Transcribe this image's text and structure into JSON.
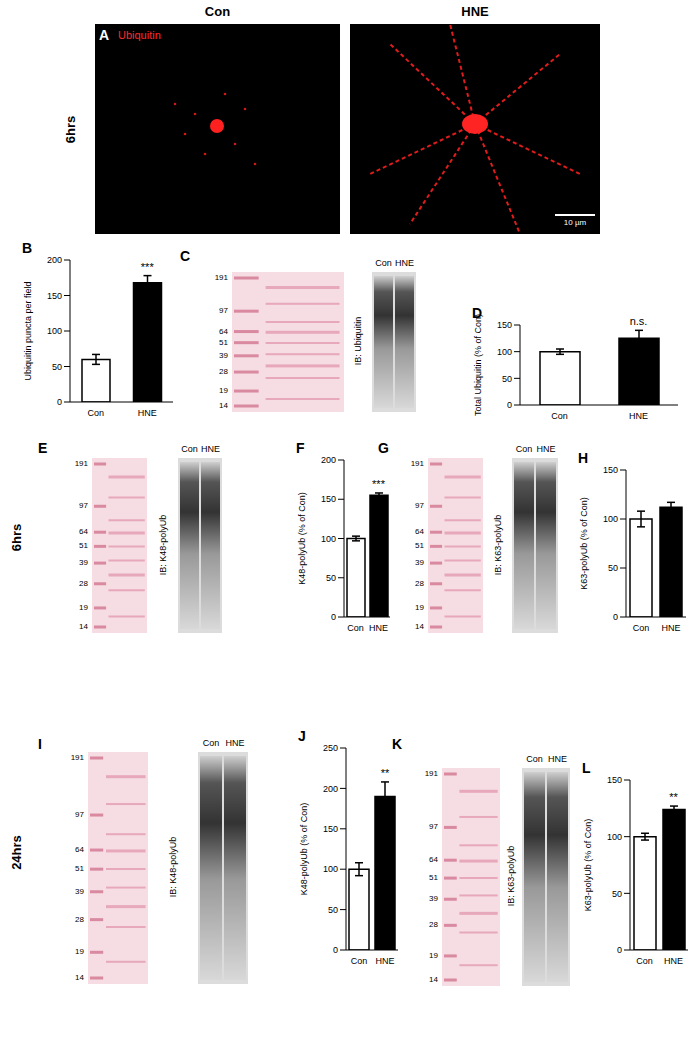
{
  "chart_data": [
    {
      "type": "bar",
      "panel": "B",
      "categories": [
        "Con",
        "HNE"
      ],
      "values": [
        60,
        168
      ],
      "errors": [
        7,
        10
      ],
      "colors": [
        "#ffffff",
        "#000000"
      ],
      "ylim": [
        0,
        200
      ],
      "yticks": [
        0,
        50,
        100,
        150,
        200
      ],
      "ylabel": "Ubiquitin puncta per field",
      "annotation": {
        "text": "***",
        "category": "HNE"
      }
    },
    {
      "type": "bar",
      "panel": "D",
      "categories": [
        "Con",
        "HNE"
      ],
      "values": [
        100,
        125
      ],
      "errors": [
        5,
        15
      ],
      "colors": [
        "#ffffff",
        "#000000"
      ],
      "ylim": [
        0,
        150
      ],
      "yticks": [
        0,
        50,
        100,
        150
      ],
      "ylabel": "Total Ubiquitin (% of Con)",
      "annotation": {
        "text": "n.s.",
        "category": "HNE"
      }
    },
    {
      "type": "bar",
      "panel": "F",
      "categories": [
        "Con",
        "HNE"
      ],
      "values": [
        100,
        155
      ],
      "errors": [
        3,
        3
      ],
      "colors": [
        "#ffffff",
        "#000000"
      ],
      "ylim": [
        0,
        200
      ],
      "yticks": [
        0,
        50,
        100,
        150,
        200
      ],
      "ylabel": "K48-polyUb (% of Con)",
      "annotation": {
        "text": "***",
        "category": "HNE"
      }
    },
    {
      "type": "bar",
      "panel": "H",
      "categories": [
        "Con",
        "HNE"
      ],
      "values": [
        100,
        112
      ],
      "errors": [
        8,
        5
      ],
      "colors": [
        "#ffffff",
        "#000000"
      ],
      "ylim": [
        0,
        150
      ],
      "yticks": [
        0,
        50,
        100,
        150
      ],
      "ylabel": "K63-polyUb (% of Con)"
    },
    {
      "type": "bar",
      "panel": "J",
      "categories": [
        "Con",
        "HNE"
      ],
      "values": [
        100,
        190
      ],
      "errors": [
        8,
        18
      ],
      "colors": [
        "#ffffff",
        "#000000"
      ],
      "ylim": [
        0,
        250
      ],
      "yticks": [
        0,
        50,
        100,
        150,
        200,
        250
      ],
      "ylabel": "K48-polyUb (% of Con)",
      "annotation": {
        "text": "**",
        "category": "HNE"
      }
    },
    {
      "type": "bar",
      "panel": "L",
      "categories": [
        "Con",
        "HNE"
      ],
      "values": [
        100,
        124
      ],
      "errors": [
        3,
        3
      ],
      "colors": [
        "#ffffff",
        "#000000"
      ],
      "ylim": [
        0,
        150
      ],
      "yticks": [
        0,
        50,
        100,
        150
      ],
      "ylabel": "K63-polyUb (% of Con)",
      "annotation": {
        "text": "**",
        "category": "HNE"
      }
    }
  ],
  "images": {
    "panel": "A",
    "row_label": "6hrs",
    "stain": "Ubiquitin",
    "conditions": [
      "Con",
      "HNE"
    ],
    "scale_bar": "10 µm"
  },
  "blots": [
    {
      "panel": "C",
      "ladder": [
        191,
        97,
        64,
        51,
        39,
        28,
        19,
        14
      ],
      "label": "IB: Ubiquitin",
      "lanes": [
        "Con",
        "HNE"
      ]
    },
    {
      "panel": "E",
      "ladder": [
        191,
        97,
        64,
        51,
        39,
        28,
        19,
        14
      ],
      "label": "IB: K48-polyUb",
      "lanes": [
        "Con",
        "HNE"
      ]
    },
    {
      "panel": "G",
      "ladder": [
        191,
        97,
        64,
        51,
        39,
        28,
        19,
        14
      ],
      "label": "IB: K63-polyUb",
      "lanes": [
        "Con",
        "HNE"
      ]
    },
    {
      "panel": "I",
      "ladder": [
        191,
        97,
        64,
        51,
        39,
        28,
        19,
        14
      ],
      "label": "IB: K48-polyUb",
      "lanes": [
        "Con",
        "HNE"
      ]
    },
    {
      "panel": "K",
      "ladder": [
        191,
        97,
        64,
        51,
        39,
        28,
        19,
        14
      ],
      "label": "IB: K63-polyUb",
      "lanes": [
        "Con",
        "HNE"
      ]
    }
  ],
  "rows": [
    {
      "label": "6hrs"
    },
    {
      "label": "24hrs"
    }
  ]
}
